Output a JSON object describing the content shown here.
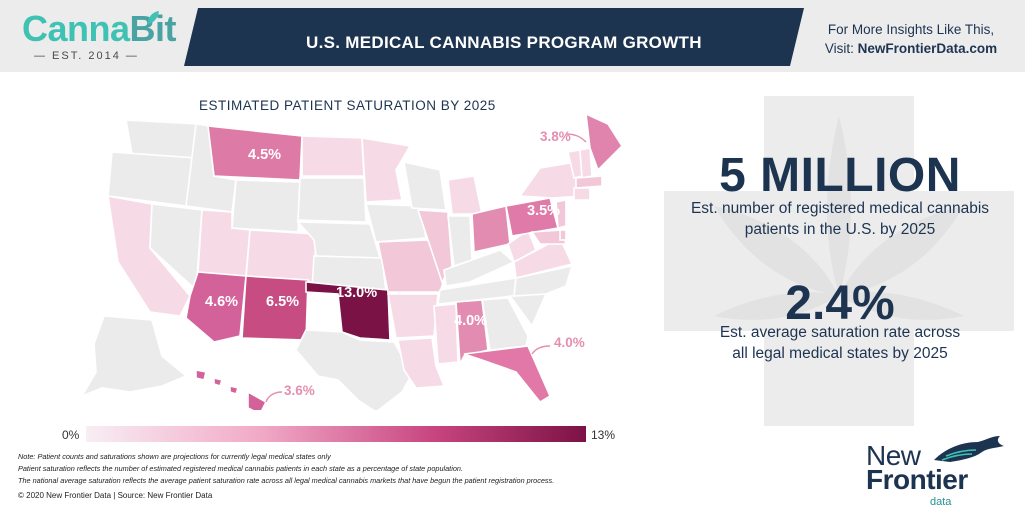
{
  "logo": {
    "part1": "Canna",
    "part2": "Bit",
    "est": "— EST. 2014 —"
  },
  "header": {
    "title": "U.S. MEDICAL CANNABIS PROGRAM GROWTH",
    "insights_line1": "For More Insights Like This,",
    "insights_prefix": "Visit: ",
    "insights_site": "NewFrontierData.com"
  },
  "map": {
    "title": "ESTIMATED PATIENT SATURATION BY 2025",
    "labels": {
      "montana": "4.5%",
      "maine": "3.8%",
      "pennsylvania": "3.5%",
      "arizona": "4.6%",
      "new_mexico": "6.5%",
      "oklahoma": "13.0%",
      "alabama": "4.0%",
      "florida": "4.0%",
      "hawaii": "3.6%"
    },
    "legend_min": "0%",
    "legend_max": "13%"
  },
  "notes": [
    "Note: Patient counts and saturations shown are projections for currently legal medical states only",
    "Patient saturation reflects the number of estimated registered medical cannabis patients in each state as a percentage of state population.",
    "The national average saturation reflects the average patient saturation rate across all legal medical cannabis markets that have begun the patient registration process."
  ],
  "copyright": "© 2020  New Frontier Data | Source: New Frontier Data",
  "stats": {
    "patients_value": "5 MILLION",
    "patients_desc_1": "Est. number of registered medical cannabis",
    "patients_desc_2": "patients in the U.S. by 2025",
    "saturation_value": "2.4%",
    "saturation_desc_1": "Est. average saturation rate across",
    "saturation_desc_2": "all legal medical states by 2025"
  },
  "brand": {
    "new": "New",
    "frontier": "Frontier",
    "data": "data"
  },
  "colors": {
    "navy": "#1d3451",
    "teal": "#3fc2b4",
    "dark_magenta": "#7b1245",
    "light_pink": "#f8eef3"
  }
}
